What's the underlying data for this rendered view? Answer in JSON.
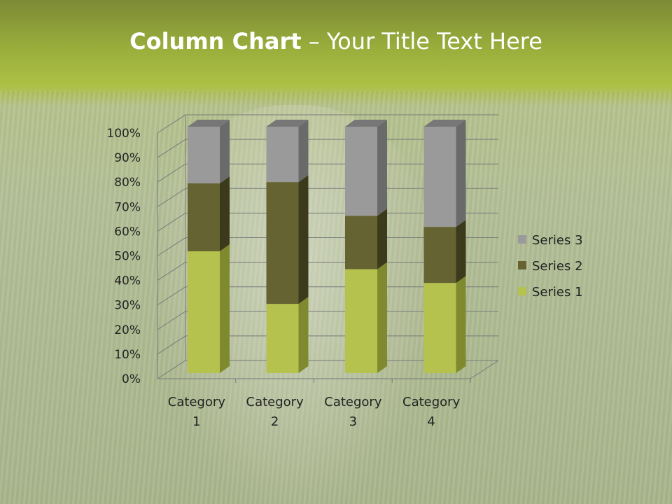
{
  "slide": {
    "title_bold": "Column Chart",
    "title_rest": " – Your Title Text Here"
  },
  "chart_data": {
    "type": "bar",
    "subtype": "3d-stacked-100-percent-column",
    "categories": [
      "Category 1",
      "Category 2",
      "Category 3",
      "Category 4"
    ],
    "category_lines": [
      [
        "Category",
        "1"
      ],
      [
        "Category",
        "2"
      ],
      [
        "Category",
        "3"
      ],
      [
        "Category",
        "4"
      ]
    ],
    "series": [
      {
        "name": "Series 1",
        "values": [
          4.3,
          2.5,
          3.5,
          4.5
        ],
        "color": "#b5c24e",
        "side": "#7f8a2e",
        "top": "#c9d46a"
      },
      {
        "name": "Series 2",
        "values": [
          2.4,
          4.4,
          1.8,
          2.8
        ],
        "color": "#656332",
        "side": "#3c3a1c",
        "top": "#7a7840"
      },
      {
        "name": "Series 3",
        "values": [
          2,
          2,
          3,
          5
        ],
        "color": "#9a9a9a",
        "side": "#6a6a6a",
        "top": "#777777"
      }
    ],
    "yticks": [
      "0%",
      "10%",
      "20%",
      "30%",
      "40%",
      "50%",
      "60%",
      "70%",
      "80%",
      "90%",
      "100%"
    ],
    "ylim": [
      0,
      100
    ],
    "grid": true,
    "legend": "right"
  }
}
